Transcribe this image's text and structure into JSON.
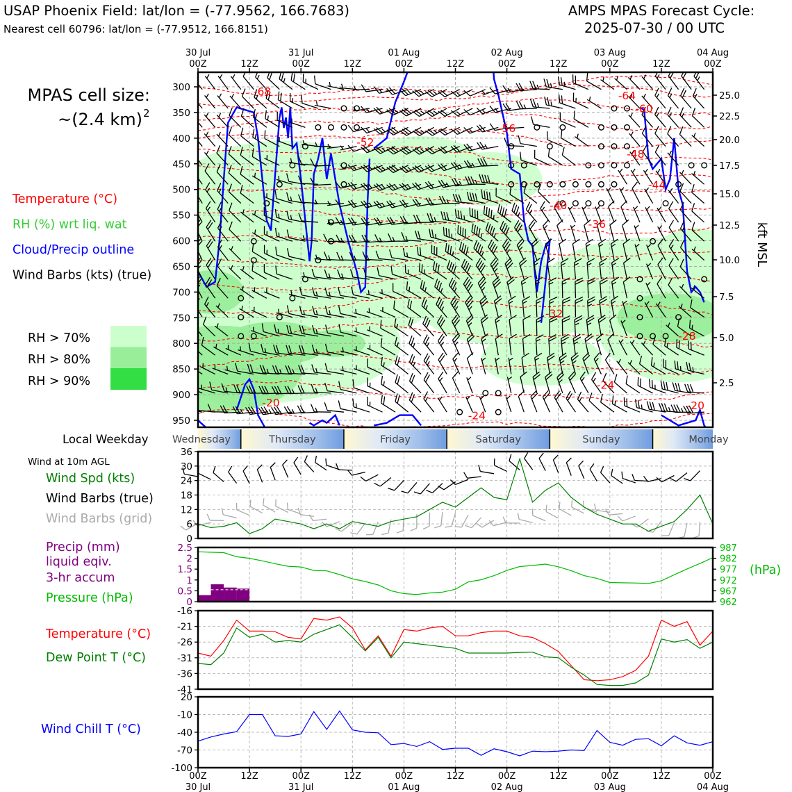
{
  "header": {
    "title": "USAP Phoenix Field: lat/lon = (-77.9562, 166.7683)",
    "subtitle": "Nearest cell 60796: lat/lon = (-77.9512, 166.8151)",
    "cycle_line1": "AMPS MPAS Forecast Cycle:",
    "cycle_line2": "2025-07-30 / 00 UTC"
  },
  "left_panel": {
    "cell_size_line1": "MPAS cell size:",
    "cell_size_line2": "~(2.4 km)",
    "cell_size_sup": "2",
    "legend": [
      {
        "label": "Temperature (°C)",
        "color": "#ff0000"
      },
      {
        "label": "RH (%) wrt liq. wat",
        "color": "#33cc33"
      },
      {
        "label": "Cloud/Precip outline",
        "color": "#0000ff"
      },
      {
        "label": "Wind Barbs (kts) (true)",
        "color": "#000000"
      }
    ],
    "rh_legend": [
      {
        "label": "RH > 70%",
        "color": "#ccffcc"
      },
      {
        "label": "RH > 80%",
        "color": "#99ee99"
      },
      {
        "label": "RH > 90%",
        "color": "#33dd44"
      }
    ],
    "local_weekday_label": "Local Weekday",
    "wind_agl_label": "Wind at 10m AGL",
    "wind_labels": [
      {
        "text": "Wind Spd (kts)",
        "color": "#008000"
      },
      {
        "text": "Wind Barbs (true)",
        "color": "#000000"
      },
      {
        "text": "Wind Barbs (grid)",
        "color": "#aaaaaa"
      }
    ],
    "precip_labels": [
      {
        "text": "Precip (mm)",
        "color": "#800080"
      },
      {
        "text": "liquid eqiv.",
        "color": "#800080"
      },
      {
        "text": "3-hr accum",
        "color": "#800080"
      },
      {
        "text": "Pressure (hPa)",
        "color": "#00bb00"
      }
    ],
    "temp_labels": [
      {
        "text": "Temperature (°C)",
        "color": "#ff0000"
      },
      {
        "text": "Dew Point T (°C)",
        "color": "#008000"
      }
    ],
    "windchill_label": {
      "text": "Wind Chill T (°C)",
      "color": "#0000ff"
    }
  },
  "time_axis": {
    "top_ticks": [
      {
        "l1": "30 Jul",
        "l2": "00Z"
      },
      {
        "l1": "",
        "l2": "12Z"
      },
      {
        "l1": "31 Jul",
        "l2": "00Z"
      },
      {
        "l1": "",
        "l2": "12Z"
      },
      {
        "l1": "01 Aug",
        "l2": "00Z"
      },
      {
        "l1": "",
        "l2": "12Z"
      },
      {
        "l1": "02 Aug",
        "l2": "00Z"
      },
      {
        "l1": "",
        "l2": "12Z"
      },
      {
        "l1": "03 Aug",
        "l2": "00Z"
      },
      {
        "l1": "",
        "l2": "12Z"
      },
      {
        "l1": "04 Aug",
        "l2": "00Z"
      }
    ],
    "bottom_ticks": [
      {
        "l1": "00Z",
        "l2": "30 Jul"
      },
      {
        "l1": "12Z",
        "l2": ""
      },
      {
        "l1": "00Z",
        "l2": "31 Jul"
      },
      {
        "l1": "12Z",
        "l2": ""
      },
      {
        "l1": "00Z",
        "l2": "01 Aug"
      },
      {
        "l1": "12Z",
        "l2": ""
      },
      {
        "l1": "00Z",
        "l2": "02 Aug"
      },
      {
        "l1": "12Z",
        "l2": ""
      },
      {
        "l1": "00Z",
        "l2": "03 Aug"
      },
      {
        "l1": "12Z",
        "l2": ""
      },
      {
        "l1": "00Z",
        "l2": "04 Aug"
      }
    ],
    "weekdays": [
      "Wednesday",
      "Thursday",
      "Friday",
      "Saturday",
      "Sunday",
      "Monday"
    ]
  },
  "chart_data": [
    {
      "type": "heatmap",
      "name": "cross-section",
      "pressure_ticks": [
        300,
        350,
        400,
        450,
        500,
        550,
        600,
        650,
        700,
        750,
        800,
        850,
        900,
        950
      ],
      "kft_ticks": [
        "25.0",
        "22.5",
        "20.0",
        "17.5",
        "15.0",
        "12.5",
        "10.0",
        "7.5",
        "5.0",
        "2.5"
      ],
      "kft_pressures": [
        315,
        335,
        358,
        383,
        410,
        445,
        485,
        541,
        607,
        650
      ],
      "kft_label": "kft MSL",
      "temp_labels": [
        {
          "text": "-68",
          "hour": 15,
          "p": 308
        },
        {
          "text": "-64",
          "hour": 100,
          "p": 316
        },
        {
          "text": "-60",
          "hour": 104,
          "p": 341
        },
        {
          "text": "-56",
          "hour": 72,
          "p": 380
        },
        {
          "text": "-52",
          "hour": 39,
          "p": 407
        },
        {
          "text": "-48",
          "hour": 102,
          "p": 430
        },
        {
          "text": "-44",
          "hour": 107,
          "p": 490
        },
        {
          "text": "-40",
          "hour": 84,
          "p": 530
        },
        {
          "text": "-36",
          "hour": 93,
          "p": 567
        },
        {
          "text": "-32",
          "hour": 83,
          "p": 741
        },
        {
          "text": "-28",
          "hour": 114,
          "p": 785
        },
        {
          "text": "-24",
          "hour": 95,
          "p": 880
        },
        {
          "text": "-24",
          "hour": 65,
          "p": 940
        },
        {
          "text": "-20",
          "hour": 17,
          "p": 915
        },
        {
          "text": "-20",
          "hour": 116,
          "p": 920
        }
      ]
    },
    {
      "type": "line",
      "name": "wind-speed",
      "ylim": [
        0,
        36
      ],
      "yticks": [
        0,
        6,
        12,
        18,
        24,
        30,
        36
      ],
      "x": [
        0,
        3,
        6,
        9,
        12,
        15,
        18,
        21,
        24,
        27,
        30,
        33,
        36,
        39,
        42,
        45,
        48,
        51,
        54,
        57,
        60,
        63,
        66,
        69,
        72,
        75,
        78,
        81,
        84,
        87,
        90,
        93,
        96,
        99,
        102,
        105,
        108,
        111,
        114,
        117,
        120
      ],
      "series": [
        {
          "color": "#008000",
          "values": [
            6,
            4.5,
            5,
            6.5,
            2,
            4,
            8,
            7,
            6,
            4,
            6,
            4,
            7,
            6,
            5,
            7,
            8,
            9,
            12,
            15,
            13,
            17,
            21,
            17,
            16,
            33,
            15,
            20,
            23,
            17,
            13,
            10,
            8,
            6,
            6,
            3,
            5,
            7,
            12,
            18,
            6
          ]
        }
      ]
    },
    {
      "type": "bar",
      "name": "precip-pressure",
      "precip_ylim": [
        0,
        2.5
      ],
      "precip_yticks": [
        0,
        0.5,
        1.0,
        1.5,
        2.0,
        2.5
      ],
      "precip_hours": [
        0,
        3,
        6,
        9
      ],
      "precip_values": [
        0.3,
        0.8,
        0.65,
        0.6
      ],
      "pressure_ylim": [
        962,
        987
      ],
      "pressure_yticks": [
        962,
        967,
        972,
        977,
        982,
        987
      ],
      "pressure_unit": "(hPa)",
      "x": [
        0,
        3,
        6,
        9,
        12,
        15,
        18,
        21,
        24,
        27,
        30,
        33,
        36,
        39,
        42,
        45,
        48,
        51,
        54,
        57,
        60,
        63,
        66,
        69,
        72,
        75,
        78,
        81,
        84,
        87,
        90,
        93,
        96,
        99,
        102,
        105,
        108,
        111,
        114,
        117,
        120
      ],
      "pressure_values": [
        985,
        984.8,
        984.6,
        982.7,
        982,
        980.8,
        979.5,
        978.3,
        978,
        976.4,
        976.2,
        974.5,
        972.5,
        971.3,
        969.7,
        967,
        965.7,
        965.3,
        966,
        966.4,
        967.7,
        971.1,
        972.1,
        974,
        976.4,
        978.2,
        978.7,
        979.3,
        978.1,
        976.3,
        974,
        972.7,
        970.8,
        970.7,
        970.6,
        970.4,
        971.6,
        974.4,
        977.1,
        979.6,
        982.3
      ]
    },
    {
      "type": "line",
      "name": "temperature-dewpoint",
      "ylim": [
        -41,
        -16
      ],
      "yticks": [
        -16,
        -21,
        -26,
        -31,
        -36,
        -41
      ],
      "x": [
        0,
        3,
        6,
        9,
        12,
        15,
        18,
        21,
        24,
        27,
        30,
        33,
        36,
        39,
        42,
        45,
        48,
        51,
        54,
        57,
        60,
        63,
        66,
        69,
        72,
        75,
        78,
        81,
        84,
        87,
        90,
        93,
        96,
        99,
        102,
        105,
        108,
        111,
        114,
        117,
        120
      ],
      "series": [
        {
          "name": "Temperature (°C)",
          "color": "#ff0000",
          "values": [
            -29.5,
            -30.5,
            -25.5,
            -19,
            -22.5,
            -22.5,
            -22.7,
            -24.5,
            -25,
            -18.5,
            -19,
            -18,
            -21.5,
            -28.5,
            -24,
            -30.5,
            -22,
            -22.5,
            -21.5,
            -21,
            -24,
            -24,
            -23,
            -22.5,
            -22.5,
            -24,
            -24.5,
            -26.5,
            -29,
            -33.5,
            -38,
            -38.3,
            -38,
            -37,
            -35,
            -30.5,
            -19,
            -21,
            -19.5,
            -27,
            -22.5
          ]
        },
        {
          "name": "Dew Point T (°C)",
          "color": "#008000",
          "values": [
            -32.8,
            -33.2,
            -29.5,
            -21.5,
            -24.5,
            -23.5,
            -26,
            -25.5,
            -26,
            -23.5,
            -22,
            -20.5,
            -24.5,
            -28.8,
            -24.5,
            -31,
            -26,
            -26.5,
            -27,
            -27.5,
            -28,
            -29.5,
            -29.5,
            -29.5,
            -29.5,
            -29.3,
            -29.2,
            -30.7,
            -31,
            -34,
            -36.5,
            -39.5,
            -39.8,
            -39.8,
            -39,
            -36.5,
            -25,
            -26,
            -25.2,
            -28,
            -26
          ]
        }
      ]
    },
    {
      "type": "line",
      "name": "wind-chill",
      "ylim": [
        -100,
        20
      ],
      "yticks": [
        20,
        -10,
        -40,
        -70,
        -100
      ],
      "x": [
        0,
        3,
        6,
        9,
        12,
        15,
        18,
        21,
        24,
        27,
        30,
        33,
        36,
        39,
        42,
        45,
        48,
        51,
        54,
        57,
        60,
        63,
        66,
        69,
        72,
        75,
        78,
        81,
        84,
        87,
        90,
        93,
        96,
        99,
        102,
        105,
        108,
        111,
        114,
        117,
        120
      ],
      "series": [
        {
          "color": "#0000ff",
          "values": [
            -55,
            -48,
            -43,
            -39,
            -10,
            -10,
            -46,
            -47,
            -43,
            -5,
            -35,
            -4,
            -36,
            -40,
            -41,
            -61,
            -59,
            -64,
            -56,
            -69,
            -67,
            -67,
            -79,
            -68,
            -73,
            -80,
            -72,
            -73,
            -72,
            -70,
            -71,
            -37,
            -57,
            -62,
            -52,
            -51,
            -63,
            -46,
            -58,
            -62,
            -56
          ]
        }
      ]
    }
  ]
}
